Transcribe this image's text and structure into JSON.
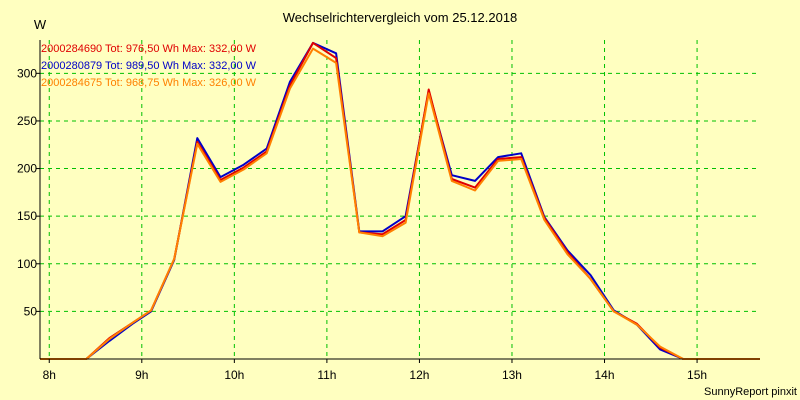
{
  "chart_data": {
    "type": "line",
    "title": "Wechselrichtervergleich vom 25.12.2018",
    "ylabel": "W",
    "xlabel": "",
    "x_tick_labels": [
      "8h",
      "9h",
      "10h",
      "11h",
      "12h",
      "13h",
      "14h",
      "15h"
    ],
    "x_ticks": [
      8,
      9,
      10,
      11,
      12,
      13,
      14,
      15
    ],
    "xlim": [
      7.9,
      15.68
    ],
    "ylim": [
      0,
      335
    ],
    "y_ticks": [
      50,
      100,
      150,
      200,
      250,
      300
    ],
    "grid": true,
    "footer": "SunnyReport pinxit",
    "series": [
      {
        "name": "2000284690",
        "legend_text": "2000284690 Tot: 976,50 Wh Max: 332,00 W",
        "color": "#e00000",
        "x": [
          7.9,
          8.4,
          8.65,
          8.9,
          9.1,
          9.35,
          9.6,
          9.85,
          10.1,
          10.35,
          10.6,
          10.85,
          11.1,
          11.35,
          11.6,
          11.85,
          12.1,
          12.35,
          12.6,
          12.85,
          13.1,
          13.35,
          13.6,
          13.85,
          14.1,
          14.35,
          14.6,
          14.85,
          15.68
        ],
        "y": [
          0,
          0,
          22,
          38,
          51,
          105,
          228,
          188,
          201,
          218,
          287,
          332,
          316,
          133,
          131,
          146,
          283,
          189,
          180,
          210,
          212,
          148,
          112,
          84,
          50,
          37,
          12,
          0,
          0
        ]
      },
      {
        "name": "2000280879",
        "legend_text": "2000280879 Tot: 989,50 Wh Max: 332,00 W",
        "color": "#0000c8",
        "x": [
          7.9,
          8.4,
          8.65,
          8.9,
          9.1,
          9.35,
          9.6,
          9.85,
          10.1,
          10.35,
          10.6,
          10.85,
          11.1,
          11.35,
          11.6,
          11.85,
          12.1,
          12.35,
          12.6,
          12.85,
          13.1,
          13.35,
          13.6,
          13.85,
          14.1,
          14.35,
          14.6,
          14.85,
          15.68
        ],
        "y": [
          0,
          0,
          19,
          37,
          50,
          104,
          232,
          191,
          204,
          221,
          291,
          332,
          321,
          134,
          134,
          150,
          281,
          193,
          187,
          212,
          216,
          149,
          114,
          88,
          51,
          36,
          10,
          0,
          0
        ]
      },
      {
        "name": "2000284675",
        "legend_text": "2000284675 Tot: 968,75 Wh Max: 326,00 W",
        "color": "#ff8000",
        "x": [
          7.9,
          8.4,
          8.65,
          8.9,
          9.1,
          9.35,
          9.6,
          9.85,
          10.1,
          10.35,
          10.6,
          10.85,
          11.1,
          11.35,
          11.6,
          11.85,
          12.1,
          12.35,
          12.6,
          12.85,
          13.1,
          13.35,
          13.6,
          13.85,
          14.1,
          14.35,
          14.6,
          14.85,
          15.68
        ],
        "y": [
          0,
          0,
          21,
          38,
          51,
          105,
          226,
          186,
          199,
          216,
          284,
          326,
          311,
          133,
          129,
          143,
          279,
          187,
          177,
          208,
          210,
          146,
          110,
          84,
          50,
          36,
          13,
          0,
          0
        ]
      }
    ]
  }
}
